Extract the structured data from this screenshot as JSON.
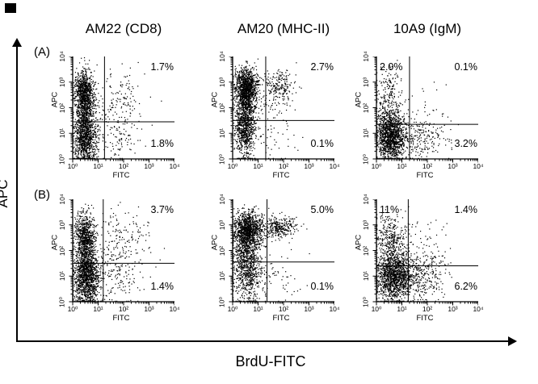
{
  "figure": {
    "column_titles": [
      "AM22 (CD8)",
      "AM20 (MHC-II)",
      "10A9 (IgM)"
    ],
    "row_labels": [
      "(A)",
      "(B)"
    ],
    "global_y_axis": "APC",
    "global_x_axis": "BrdU-FITC",
    "colors": {
      "dots": "#000000",
      "axis": "#000000",
      "background": "#ffffff"
    }
  },
  "chart_data": [
    {
      "type": "scatter",
      "id": "a-am22",
      "row": "A",
      "column_title": "AM22 (CD8)",
      "xlabel": "FITC",
      "ylabel": "APC",
      "x_scale": "log10",
      "y_scale": "log10",
      "x_range": [
        1,
        10000
      ],
      "y_range": [
        1,
        10000
      ],
      "tick_exponents": [
        0,
        1,
        2,
        3,
        4
      ],
      "x_tick_labels": [
        "10⁰",
        "10¹",
        "10²",
        "10³",
        "10⁴"
      ],
      "y_tick_labels": [
        "10⁰",
        "10¹",
        "10²",
        "10³",
        "10⁴"
      ],
      "gate_x_log": 1.25,
      "gate_y_log": 1.45,
      "quadrant_percentages": {
        "top_right": "1.7%",
        "bottom_right": "1.8%"
      },
      "clusters": [
        {
          "n": 700,
          "cx": 0.45,
          "cy": 2.65,
          "sx": 0.18,
          "sy": 0.4
        },
        {
          "n": 500,
          "cx": 0.5,
          "cy": 1.9,
          "sx": 0.18,
          "sy": 0.6
        },
        {
          "n": 900,
          "cx": 0.5,
          "cy": 0.8,
          "sx": 0.22,
          "sy": 0.5
        },
        {
          "n": 120,
          "cx": 1.9,
          "cy": 2.4,
          "sx": 0.55,
          "sy": 0.6
        },
        {
          "n": 100,
          "cx": 1.8,
          "cy": 0.9,
          "sx": 0.5,
          "sy": 0.5
        },
        {
          "n": 60,
          "cx": 1.2,
          "cy": 1.6,
          "sx": 0.5,
          "sy": 0.8
        }
      ]
    },
    {
      "type": "scatter",
      "id": "a-am20",
      "row": "A",
      "column_title": "AM20 (MHC-II)",
      "xlabel": "FITC",
      "ylabel": "APC",
      "x_scale": "log10",
      "y_scale": "log10",
      "x_range": [
        1,
        10000
      ],
      "y_range": [
        1,
        10000
      ],
      "tick_exponents": [
        0,
        1,
        2,
        3,
        4
      ],
      "x_tick_labels": [
        "10⁰",
        "10¹",
        "10²",
        "10³",
        "10⁴"
      ],
      "y_tick_labels": [
        "10⁰",
        "10¹",
        "10²",
        "10³",
        "10⁴"
      ],
      "gate_x_log": 1.3,
      "gate_y_log": 1.5,
      "quadrant_percentages": {
        "top_right": "2.7%",
        "bottom_right": "0.1%"
      },
      "clusters": [
        {
          "n": 1000,
          "cx": 0.55,
          "cy": 2.8,
          "sx": 0.22,
          "sy": 0.38
        },
        {
          "n": 500,
          "cx": 0.5,
          "cy": 2.0,
          "sx": 0.2,
          "sy": 0.5
        },
        {
          "n": 600,
          "cx": 0.5,
          "cy": 1.1,
          "sx": 0.2,
          "sy": 0.55
        },
        {
          "n": 200,
          "cx": 1.85,
          "cy": 2.85,
          "sx": 0.3,
          "sy": 0.3
        },
        {
          "n": 50,
          "cx": 1.6,
          "cy": 1.0,
          "sx": 0.5,
          "sy": 0.5
        },
        {
          "n": 60,
          "cx": 1.3,
          "cy": 2.2,
          "sx": 0.5,
          "sy": 0.5
        }
      ]
    },
    {
      "type": "scatter",
      "id": "a-10a9",
      "row": "A",
      "column_title": "10A9 (IgM)",
      "xlabel": "FITC",
      "ylabel": "APC",
      "x_scale": "log10",
      "y_scale": "log10",
      "x_range": [
        1,
        10000
      ],
      "y_range": [
        1,
        10000
      ],
      "tick_exponents": [
        0,
        1,
        2,
        3,
        4
      ],
      "x_tick_labels": [
        "10⁰",
        "10¹",
        "10²",
        "10³",
        "10⁴"
      ],
      "y_tick_labels": [
        "10⁰",
        "10¹",
        "10²",
        "10³",
        "10⁴"
      ],
      "gate_x_log": 1.3,
      "gate_y_log": 1.35,
      "quadrant_percentages": {
        "top_left": "2.0%",
        "top_right": "0.1%",
        "bottom_right": "3.2%"
      },
      "clusters": [
        {
          "n": 1200,
          "cx": 0.55,
          "cy": 0.85,
          "sx": 0.28,
          "sy": 0.45
        },
        {
          "n": 250,
          "cx": 0.5,
          "cy": 1.9,
          "sx": 0.25,
          "sy": 0.55
        },
        {
          "n": 60,
          "cx": 0.5,
          "cy": 3.0,
          "sx": 0.3,
          "sy": 0.4
        },
        {
          "n": 250,
          "cx": 1.6,
          "cy": 0.8,
          "sx": 0.55,
          "sy": 0.45
        },
        {
          "n": 40,
          "cx": 1.8,
          "cy": 2.0,
          "sx": 0.6,
          "sy": 0.7
        }
      ]
    },
    {
      "type": "scatter",
      "id": "b-am22",
      "row": "B",
      "column_title": "AM22 (CD8)",
      "xlabel": "FITC",
      "ylabel": "APC",
      "x_scale": "log10",
      "y_scale": "log10",
      "x_range": [
        1,
        10000
      ],
      "y_range": [
        1,
        10000
      ],
      "tick_exponents": [
        0,
        1,
        2,
        3,
        4
      ],
      "x_tick_labels": [
        "10⁰",
        "10¹",
        "10²",
        "10³",
        "10⁴"
      ],
      "y_tick_labels": [
        "10⁰",
        "10¹",
        "10²",
        "10³",
        "10⁴"
      ],
      "gate_x_log": 1.2,
      "gate_y_log": 1.5,
      "quadrant_percentages": {
        "top_right": "3.7%",
        "bottom_right": "1.4%"
      },
      "clusters": [
        {
          "n": 600,
          "cx": 0.5,
          "cy": 2.55,
          "sx": 0.2,
          "sy": 0.45
        },
        {
          "n": 400,
          "cx": 0.5,
          "cy": 1.8,
          "sx": 0.2,
          "sy": 0.6
        },
        {
          "n": 1100,
          "cx": 0.55,
          "cy": 0.85,
          "sx": 0.25,
          "sy": 0.55
        },
        {
          "n": 200,
          "cx": 1.9,
          "cy": 2.3,
          "sx": 0.6,
          "sy": 0.7
        },
        {
          "n": 120,
          "cx": 1.8,
          "cy": 0.9,
          "sx": 0.55,
          "sy": 0.5
        }
      ]
    },
    {
      "type": "scatter",
      "id": "b-am20",
      "row": "B",
      "column_title": "AM20 (MHC-II)",
      "xlabel": "FITC",
      "ylabel": "APC",
      "x_scale": "log10",
      "y_scale": "log10",
      "x_range": [
        1,
        10000
      ],
      "y_range": [
        1,
        10000
      ],
      "tick_exponents": [
        0,
        1,
        2,
        3,
        4
      ],
      "x_tick_labels": [
        "10⁰",
        "10¹",
        "10²",
        "10³",
        "10⁴"
      ],
      "y_tick_labels": [
        "10⁰",
        "10¹",
        "10²",
        "10³",
        "10⁴"
      ],
      "gate_x_log": 1.35,
      "gate_y_log": 1.55,
      "quadrant_percentages": {
        "top_right": "5.0%",
        "bottom_right": "0.1%"
      },
      "clusters": [
        {
          "n": 1100,
          "cx": 0.6,
          "cy": 2.8,
          "sx": 0.28,
          "sy": 0.35
        },
        {
          "n": 350,
          "cx": 0.55,
          "cy": 2.0,
          "sx": 0.25,
          "sy": 0.5
        },
        {
          "n": 600,
          "cx": 0.6,
          "cy": 1.1,
          "sx": 0.3,
          "sy": 0.6
        },
        {
          "n": 300,
          "cx": 1.85,
          "cy": 2.9,
          "sx": 0.35,
          "sy": 0.22
        },
        {
          "n": 60,
          "cx": 1.7,
          "cy": 1.0,
          "sx": 0.5,
          "sy": 0.5
        }
      ]
    },
    {
      "type": "scatter",
      "id": "b-10a9",
      "row": "B",
      "column_title": "10A9 (IgM)",
      "xlabel": "FITC",
      "ylabel": "APC",
      "x_scale": "log10",
      "y_scale": "log10",
      "x_range": [
        1,
        10000
      ],
      "y_range": [
        1,
        10000
      ],
      "tick_exponents": [
        0,
        1,
        2,
        3,
        4
      ],
      "x_tick_labels": [
        "10⁰",
        "10¹",
        "10²",
        "10³",
        "10⁴"
      ],
      "y_tick_labels": [
        "10⁰",
        "10¹",
        "10²",
        "10³",
        "10⁴"
      ],
      "gate_x_log": 1.25,
      "gate_y_log": 1.4,
      "quadrant_percentages": {
        "top_left": "11%",
        "top_right": "1.4%",
        "bottom_right": "6.2%"
      },
      "clusters": [
        {
          "n": 1300,
          "cx": 0.7,
          "cy": 1.0,
          "sx": 0.35,
          "sy": 0.5
        },
        {
          "n": 300,
          "cx": 0.6,
          "cy": 2.2,
          "sx": 0.3,
          "sy": 0.5
        },
        {
          "n": 80,
          "cx": 0.5,
          "cy": 3.0,
          "sx": 0.3,
          "sy": 0.35
        },
        {
          "n": 350,
          "cx": 1.7,
          "cy": 1.0,
          "sx": 0.5,
          "sy": 0.5
        },
        {
          "n": 60,
          "cx": 1.9,
          "cy": 2.2,
          "sx": 0.5,
          "sy": 0.6
        }
      ]
    }
  ]
}
